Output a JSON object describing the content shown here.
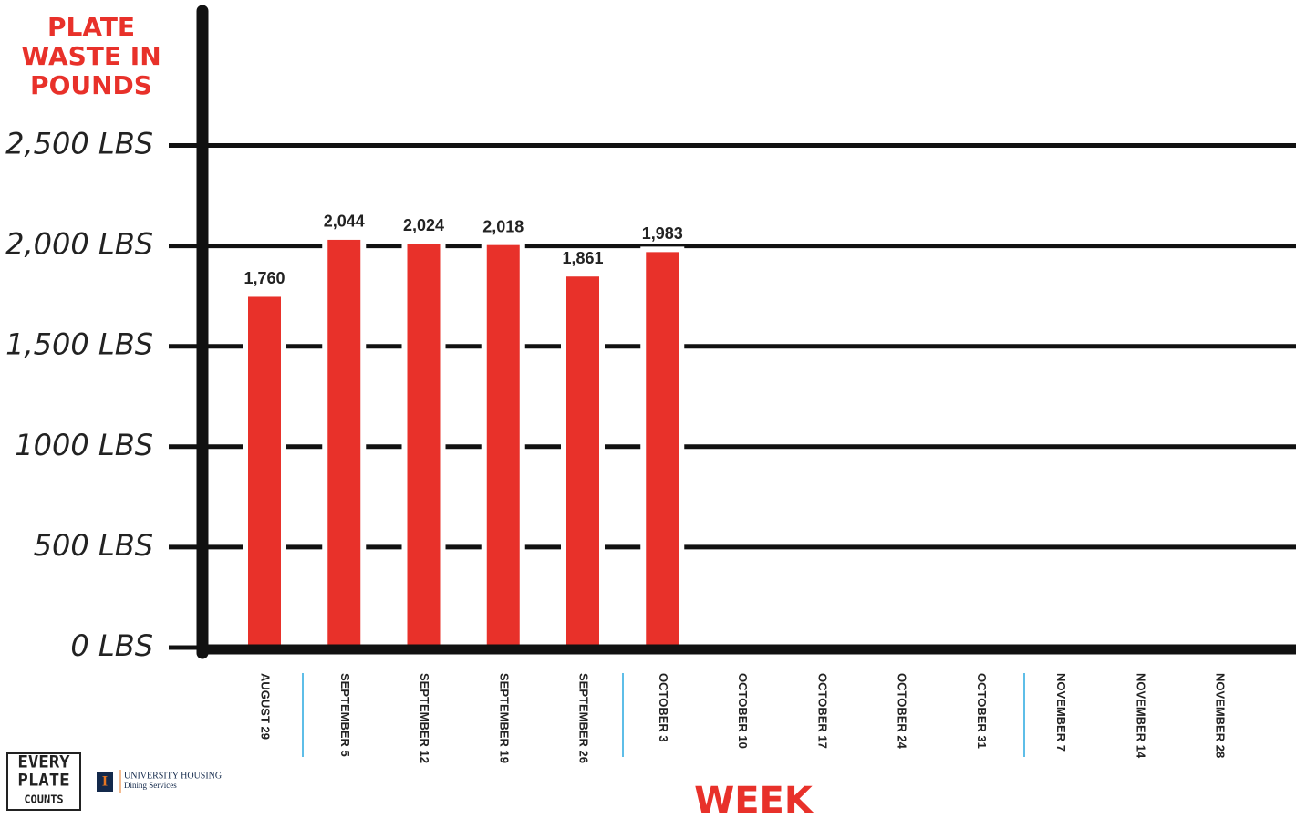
{
  "chart_data": {
    "type": "bar",
    "ylabel": "PLATE WASTE IN POUNDS",
    "xlabel": "WEEK",
    "categories": [
      "AUGUST 29",
      "SEPTEMBER 5",
      "SEPTEMBER 12",
      "SEPTEMBER 19",
      "SEPTEMBER 26",
      "OCTOBER 3",
      "OCTOBER 10",
      "OCTOBER 17",
      "OCTOBER 24",
      "OCTOBER 31",
      "NOVEMBER 7",
      "NOVEMBER 14",
      "NOVEMBER 28"
    ],
    "values": [
      1760,
      2044,
      2024,
      2018,
      1861,
      1983,
      null,
      null,
      null,
      null,
      null,
      null,
      null
    ],
    "value_labels": [
      "1,760",
      "2,044",
      "2,024",
      "2,018",
      "1,861",
      "1,983",
      null,
      null,
      null,
      null,
      null,
      null,
      null
    ],
    "color": "#e8312a",
    "ylim": [
      0,
      3170
    ],
    "yticks": [
      {
        "value": 0,
        "label": "0 LBS"
      },
      {
        "value": 500,
        "label": "500 LBS"
      },
      {
        "value": 1000,
        "label": "1000 LBS"
      },
      {
        "value": 1500,
        "label": "1,500 LBS"
      },
      {
        "value": 2000,
        "label": "2,000 LBS"
      },
      {
        "value": 2500,
        "label": "2,500 LBS"
      }
    ],
    "grid": true
  },
  "footer": {
    "brand": [
      "EVERY",
      "PLATE",
      "COUNTS"
    ],
    "mark": "I",
    "housing": "UNIVERSITY HOUSING",
    "dining": "Dining Services"
  }
}
